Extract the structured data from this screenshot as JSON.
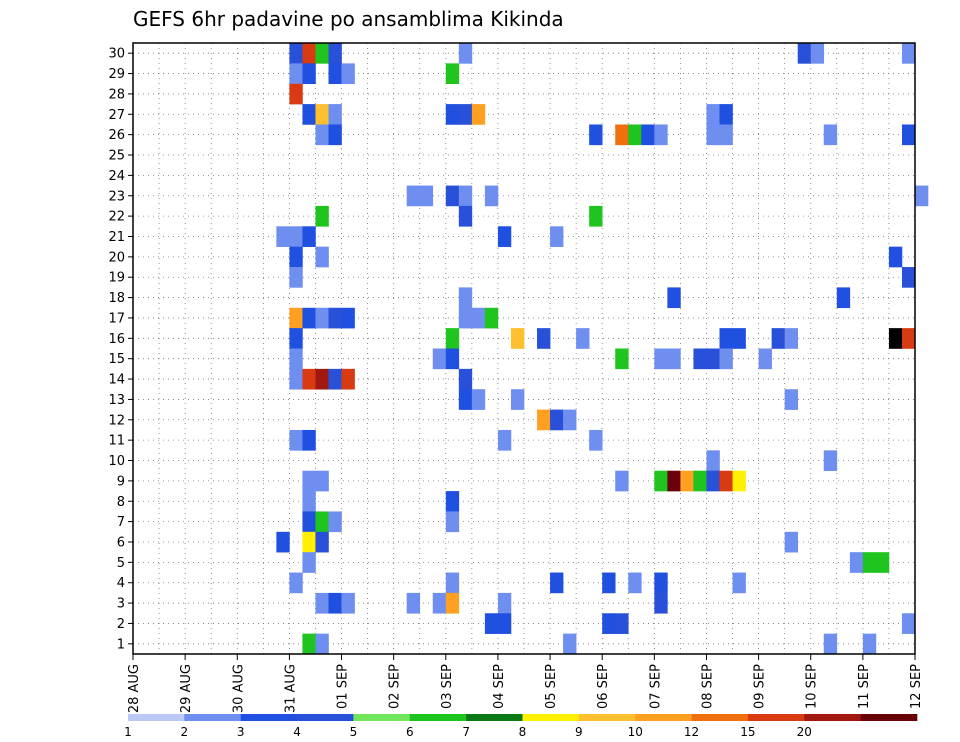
{
  "chart_data": {
    "type": "heatmap",
    "title": "GEFS 6hr padavine po ansamblima Kikinda",
    "xlabel": "",
    "ylabel": "",
    "x_ticks": [
      "28 AUG",
      "29 AUG",
      "30 AUG",
      "31 AUG",
      "01 SEP",
      "02 SEP",
      "03 SEP",
      "04 SEP",
      "05 SEP",
      "06 SEP",
      "07 SEP",
      "08 SEP",
      "09 SEP",
      "10 SEP",
      "11 SEP",
      "12 SEP"
    ],
    "y_ticks": [
      "1",
      "2",
      "3",
      "4",
      "5",
      "6",
      "7",
      "8",
      "9",
      "10",
      "11",
      "12",
      "13",
      "14",
      "15",
      "16",
      "17",
      "18",
      "19",
      "20",
      "21",
      "22",
      "23",
      "24",
      "25",
      "26",
      "27",
      "28",
      "29",
      "30"
    ],
    "x_range_days": [
      0,
      15
    ],
    "y_range": [
      0,
      30
    ],
    "step_hours": 6,
    "grid": true,
    "grid_style": "dotted",
    "colorbar": {
      "ticks": [
        "1",
        "2",
        "3",
        "4",
        "5",
        "6",
        "7",
        "8",
        "9",
        "10",
        "12",
        "15",
        "20"
      ],
      "colors": [
        "#b9c8f5",
        "#6e8ef0",
        "#2050e0",
        "#2850d8",
        "#72e65a",
        "#1fc41f",
        "#0b7a14",
        "#fff000",
        "#ffc030",
        "#ffa020",
        "#f07010",
        "#d83a12",
        "#a01810",
        "#6a0008"
      ]
    },
    "levels": [
      1,
      2,
      3,
      4,
      5,
      6,
      7,
      8,
      9,
      10,
      12,
      15,
      20
    ],
    "cells": [
      {
        "member": 30,
        "day": 3.0,
        "bin": 3
      },
      {
        "member": 30,
        "day": 3.25,
        "bin": 11
      },
      {
        "member": 30,
        "day": 3.5,
        "bin": 5
      },
      {
        "member": 30,
        "day": 3.75,
        "bin": 3
      },
      {
        "member": 30,
        "day": 6.25,
        "bin": 1
      },
      {
        "member": 30,
        "day": 12.75,
        "bin": 3
      },
      {
        "member": 30,
        "day": 13.0,
        "bin": 1
      },
      {
        "member": 30,
        "day": 14.75,
        "bin": 1
      },
      {
        "member": 29,
        "day": 3.0,
        "bin": 1
      },
      {
        "member": 29,
        "day": 3.25,
        "bin": 2
      },
      {
        "member": 29,
        "day": 3.75,
        "bin": 2
      },
      {
        "member": 29,
        "day": 4.0,
        "bin": 1
      },
      {
        "member": 29,
        "day": 6.0,
        "bin": 5
      },
      {
        "member": 28,
        "day": 3.0,
        "bin": 11
      },
      {
        "member": 27,
        "day": 3.25,
        "bin": 2
      },
      {
        "member": 27,
        "day": 3.5,
        "bin": 8
      },
      {
        "member": 27,
        "day": 3.75,
        "bin": 1
      },
      {
        "member": 27,
        "day": 6.0,
        "bin": 2
      },
      {
        "member": 27,
        "day": 6.25,
        "bin": 3
      },
      {
        "member": 27,
        "day": 6.5,
        "bin": 9
      },
      {
        "member": 27,
        "day": 11.0,
        "bin": 1
      },
      {
        "member": 27,
        "day": 11.25,
        "bin": 2
      },
      {
        "member": 26,
        "day": 3.5,
        "bin": 1
      },
      {
        "member": 26,
        "day": 3.75,
        "bin": 2
      },
      {
        "member": 26,
        "day": 8.75,
        "bin": 2
      },
      {
        "member": 26,
        "day": 9.25,
        "bin": 10
      },
      {
        "member": 26,
        "day": 9.5,
        "bin": 5
      },
      {
        "member": 26,
        "day": 9.75,
        "bin": 2
      },
      {
        "member": 26,
        "day": 10.0,
        "bin": 1
      },
      {
        "member": 26,
        "day": 11.0,
        "bin": 1
      },
      {
        "member": 26,
        "day": 11.25,
        "bin": 1
      },
      {
        "member": 26,
        "day": 13.25,
        "bin": 1
      },
      {
        "member": 26,
        "day": 14.75,
        "bin": 2
      },
      {
        "member": 23,
        "day": 5.25,
        "bin": 1
      },
      {
        "member": 23,
        "day": 5.5,
        "bin": 1
      },
      {
        "member": 23,
        "day": 6.0,
        "bin": 3
      },
      {
        "member": 23,
        "day": 6.25,
        "bin": 1
      },
      {
        "member": 23,
        "day": 6.75,
        "bin": 1
      },
      {
        "member": 23,
        "day": 15.0,
        "bin": 1
      },
      {
        "member": 22,
        "day": 3.5,
        "bin": 5
      },
      {
        "member": 22,
        "day": 6.25,
        "bin": 3
      },
      {
        "member": 22,
        "day": 8.75,
        "bin": 5
      },
      {
        "member": 21,
        "day": 2.75,
        "bin": 1
      },
      {
        "member": 21,
        "day": 3.0,
        "bin": 1
      },
      {
        "member": 21,
        "day": 3.25,
        "bin": 2
      },
      {
        "member": 21,
        "day": 7.0,
        "bin": 2
      },
      {
        "member": 21,
        "day": 8.0,
        "bin": 1
      },
      {
        "member": 20,
        "day": 3.0,
        "bin": 2
      },
      {
        "member": 20,
        "day": 3.5,
        "bin": 1
      },
      {
        "member": 20,
        "day": 14.5,
        "bin": 2
      },
      {
        "member": 19,
        "day": 3.0,
        "bin": 1
      },
      {
        "member": 19,
        "day": 14.75,
        "bin": 3
      },
      {
        "member": 18,
        "day": 6.25,
        "bin": 1
      },
      {
        "member": 18,
        "day": 10.25,
        "bin": 2
      },
      {
        "member": 18,
        "day": 13.5,
        "bin": 2
      },
      {
        "member": 17,
        "day": 3.0,
        "bin": 9
      },
      {
        "member": 17,
        "day": 3.25,
        "bin": 2
      },
      {
        "member": 17,
        "day": 3.5,
        "bin": 1
      },
      {
        "member": 17,
        "day": 3.75,
        "bin": 3
      },
      {
        "member": 17,
        "day": 4.0,
        "bin": 2
      },
      {
        "member": 17,
        "day": 6.25,
        "bin": 1
      },
      {
        "member": 17,
        "day": 6.5,
        "bin": 1
      },
      {
        "member": 17,
        "day": 6.75,
        "bin": 5
      },
      {
        "member": 16,
        "day": 3.0,
        "bin": 2
      },
      {
        "member": 16,
        "day": 6.0,
        "bin": 5
      },
      {
        "member": 16,
        "day": 7.25,
        "bin": 8
      },
      {
        "member": 16,
        "day": 7.75,
        "bin": 3
      },
      {
        "member": 16,
        "day": 8.5,
        "bin": 1
      },
      {
        "member": 16,
        "day": 11.25,
        "bin": 2
      },
      {
        "member": 16,
        "day": 11.5,
        "bin": 2
      },
      {
        "member": 16,
        "day": 12.25,
        "bin": 3
      },
      {
        "member": 16,
        "day": 12.5,
        "bin": 1
      },
      {
        "member": 16,
        "day": 14.5,
        "bin": 14
      },
      {
        "member": 16,
        "day": 14.75,
        "bin": 11
      },
      {
        "member": 15,
        "day": 3.0,
        "bin": 1
      },
      {
        "member": 15,
        "day": 5.75,
        "bin": 1
      },
      {
        "member": 15,
        "day": 6.0,
        "bin": 2
      },
      {
        "member": 15,
        "day": 9.25,
        "bin": 5
      },
      {
        "member": 15,
        "day": 10.0,
        "bin": 1
      },
      {
        "member": 15,
        "day": 10.25,
        "bin": 1
      },
      {
        "member": 15,
        "day": 10.75,
        "bin": 3
      },
      {
        "member": 15,
        "day": 11.0,
        "bin": 3
      },
      {
        "member": 15,
        "day": 11.25,
        "bin": 1
      },
      {
        "member": 15,
        "day": 12.0,
        "bin": 1
      },
      {
        "member": 14,
        "day": 3.0,
        "bin": 1
      },
      {
        "member": 14,
        "day": 3.25,
        "bin": 11
      },
      {
        "member": 14,
        "day": 3.5,
        "bin": 12
      },
      {
        "member": 14,
        "day": 3.75,
        "bin": 3
      },
      {
        "member": 14,
        "day": 4.0,
        "bin": 11
      },
      {
        "member": 14,
        "day": 6.25,
        "bin": 3
      },
      {
        "member": 13,
        "day": 6.25,
        "bin": 2
      },
      {
        "member": 13,
        "day": 6.5,
        "bin": 1
      },
      {
        "member": 13,
        "day": 7.25,
        "bin": 1
      },
      {
        "member": 13,
        "day": 12.5,
        "bin": 1
      },
      {
        "member": 12,
        "day": 7.75,
        "bin": 9
      },
      {
        "member": 12,
        "day": 8.0,
        "bin": 3
      },
      {
        "member": 12,
        "day": 8.25,
        "bin": 1
      },
      {
        "member": 11,
        "day": 3.0,
        "bin": 1
      },
      {
        "member": 11,
        "day": 3.25,
        "bin": 2
      },
      {
        "member": 11,
        "day": 7.0,
        "bin": 1
      },
      {
        "member": 11,
        "day": 8.75,
        "bin": 1
      },
      {
        "member": 10,
        "day": 11.0,
        "bin": 1
      },
      {
        "member": 10,
        "day": 13.25,
        "bin": 1
      },
      {
        "member": 9,
        "day": 3.25,
        "bin": 1
      },
      {
        "member": 9,
        "day": 3.5,
        "bin": 1
      },
      {
        "member": 9,
        "day": 9.25,
        "bin": 1
      },
      {
        "member": 9,
        "day": 10.0,
        "bin": 5
      },
      {
        "member": 9,
        "day": 10.25,
        "bin": 13
      },
      {
        "member": 9,
        "day": 10.5,
        "bin": 9
      },
      {
        "member": 9,
        "day": 10.75,
        "bin": 5
      },
      {
        "member": 9,
        "day": 11.0,
        "bin": 3
      },
      {
        "member": 9,
        "day": 11.25,
        "bin": 11
      },
      {
        "member": 9,
        "day": 11.5,
        "bin": 7
      },
      {
        "member": 8,
        "day": 3.25,
        "bin": 1
      },
      {
        "member": 8,
        "day": 6.0,
        "bin": 2
      },
      {
        "member": 7,
        "day": 3.25,
        "bin": 2
      },
      {
        "member": 7,
        "day": 3.5,
        "bin": 5
      },
      {
        "member": 7,
        "day": 3.75,
        "bin": 1
      },
      {
        "member": 7,
        "day": 6.0,
        "bin": 1
      },
      {
        "member": 6,
        "day": 2.75,
        "bin": 2
      },
      {
        "member": 6,
        "day": 3.25,
        "bin": 7
      },
      {
        "member": 6,
        "day": 3.5,
        "bin": 3
      },
      {
        "member": 6,
        "day": 12.5,
        "bin": 1
      },
      {
        "member": 5,
        "day": 3.25,
        "bin": 1
      },
      {
        "member": 5,
        "day": 13.75,
        "bin": 1
      },
      {
        "member": 5,
        "day": 14.0,
        "bin": 5
      },
      {
        "member": 5,
        "day": 14.25,
        "bin": 5
      },
      {
        "member": 4,
        "day": 3.0,
        "bin": 1
      },
      {
        "member": 4,
        "day": 6.0,
        "bin": 1
      },
      {
        "member": 4,
        "day": 8.0,
        "bin": 2
      },
      {
        "member": 4,
        "day": 9.0,
        "bin": 2
      },
      {
        "member": 4,
        "day": 9.5,
        "bin": 1
      },
      {
        "member": 4,
        "day": 10.0,
        "bin": 2
      },
      {
        "member": 4,
        "day": 11.5,
        "bin": 1
      },
      {
        "member": 3,
        "day": 3.5,
        "bin": 1
      },
      {
        "member": 3,
        "day": 3.75,
        "bin": 2
      },
      {
        "member": 3,
        "day": 4.0,
        "bin": 1
      },
      {
        "member": 3,
        "day": 5.25,
        "bin": 1
      },
      {
        "member": 3,
        "day": 5.75,
        "bin": 1
      },
      {
        "member": 3,
        "day": 6.0,
        "bin": 9
      },
      {
        "member": 3,
        "day": 7.0,
        "bin": 1
      },
      {
        "member": 3,
        "day": 10.0,
        "bin": 3
      },
      {
        "member": 2,
        "day": 6.75,
        "bin": 2
      },
      {
        "member": 2,
        "day": 7.0,
        "bin": 2
      },
      {
        "member": 2,
        "day": 9.0,
        "bin": 2
      },
      {
        "member": 2,
        "day": 9.25,
        "bin": 3
      },
      {
        "member": 2,
        "day": 14.75,
        "bin": 1
      },
      {
        "member": 1,
        "day": 3.25,
        "bin": 5
      },
      {
        "member": 1,
        "day": 3.5,
        "bin": 1
      },
      {
        "member": 1,
        "day": 8.25,
        "bin": 1
      },
      {
        "member": 1,
        "day": 13.25,
        "bin": 1
      },
      {
        "member": 1,
        "day": 14.0,
        "bin": 1
      }
    ]
  }
}
